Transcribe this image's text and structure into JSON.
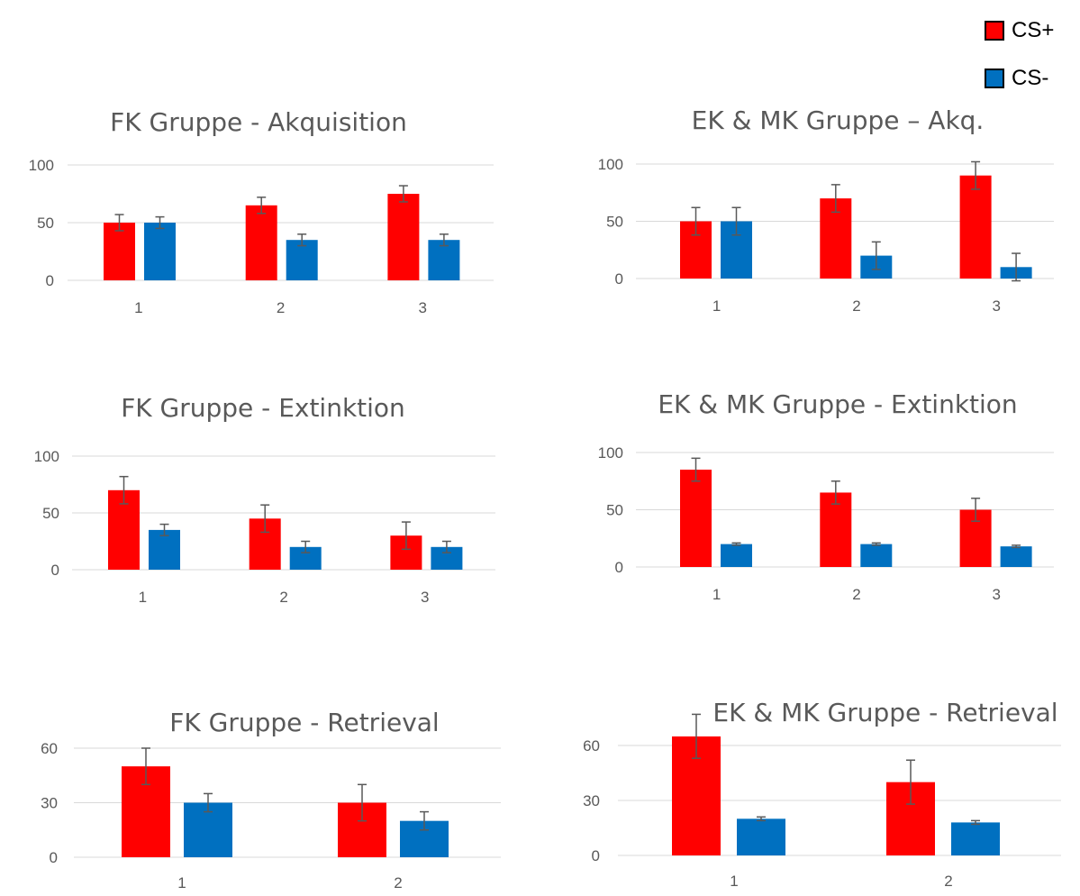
{
  "legend": [
    {
      "label": "CS+",
      "color": "#ff0000"
    },
    {
      "label": "CS-",
      "color": "#0070c0"
    }
  ],
  "colors": {
    "cs_plus": "#ff0000",
    "cs_minus": "#0070c0",
    "gridline": "#d9d9d9",
    "error_bar": "#595959",
    "text": "#595959"
  },
  "chart_data": [
    {
      "type": "bar",
      "title": "FK Gruppe - Akquisition",
      "categories": [
        "1",
        "2",
        "3"
      ],
      "ylim": [
        0,
        100
      ],
      "yticks": [
        "0",
        "50",
        "100"
      ],
      "grid": true,
      "series": [
        {
          "name": "CS+",
          "values": [
            50,
            65,
            75
          ],
          "errors": [
            7,
            7,
            7
          ]
        },
        {
          "name": "CS-",
          "values": [
            50,
            35,
            35
          ],
          "errors": [
            5,
            5,
            5
          ]
        }
      ]
    },
    {
      "type": "bar",
      "title": "EK & MK Gruppe – Akq.",
      "categories": [
        "1",
        "2",
        "3"
      ],
      "ylim": [
        0,
        100
      ],
      "yticks": [
        "0",
        "50",
        "100"
      ],
      "grid": true,
      "series": [
        {
          "name": "CS+",
          "values": [
            50,
            70,
            90
          ],
          "errors": [
            12,
            12,
            12
          ]
        },
        {
          "name": "CS-",
          "values": [
            50,
            20,
            10
          ],
          "errors": [
            12,
            12,
            12
          ]
        }
      ]
    },
    {
      "type": "bar",
      "title": "FK Gruppe - Extinktion",
      "categories": [
        "1",
        "2",
        "3"
      ],
      "ylim": [
        0,
        100
      ],
      "yticks": [
        "0",
        "50",
        "100"
      ],
      "grid": true,
      "series": [
        {
          "name": "CS+",
          "values": [
            70,
            45,
            30
          ],
          "errors": [
            12,
            12,
            12
          ]
        },
        {
          "name": "CS-",
          "values": [
            35,
            20,
            20
          ],
          "errors": [
            5,
            5,
            5
          ]
        }
      ]
    },
    {
      "type": "bar",
      "title": "EK & MK Gruppe - Extinktion",
      "categories": [
        "1",
        "2",
        "3"
      ],
      "ylim": [
        0,
        100
      ],
      "yticks": [
        "0",
        "50",
        "100"
      ],
      "grid": true,
      "series": [
        {
          "name": "CS+",
          "values": [
            85,
            65,
            50
          ],
          "errors": [
            10,
            10,
            10
          ]
        },
        {
          "name": "CS-",
          "values": [
            20,
            20,
            18
          ],
          "errors": [
            1,
            1,
            1
          ]
        }
      ]
    },
    {
      "type": "bar",
      "title": "FK Gruppe - Retrieval",
      "categories": [
        "1",
        "2"
      ],
      "ylim": [
        0,
        60
      ],
      "yticks": [
        "0",
        "30",
        "60"
      ],
      "grid": true,
      "series": [
        {
          "name": "CS+",
          "values": [
            50,
            30
          ],
          "errors": [
            10,
            10
          ]
        },
        {
          "name": "CS-",
          "values": [
            30,
            20
          ],
          "errors": [
            5,
            5
          ]
        }
      ]
    },
    {
      "type": "bar",
      "title": "EK  & MK Gruppe - Retrieval",
      "categories": [
        "1",
        "2"
      ],
      "ylim": [
        0,
        60
      ],
      "yticks": [
        "0",
        "30",
        "60"
      ],
      "grid": true,
      "series": [
        {
          "name": "CS+",
          "values": [
            65,
            40
          ],
          "errors": [
            12,
            12
          ]
        },
        {
          "name": "CS-",
          "values": [
            20,
            18
          ],
          "errors": [
            1,
            1
          ]
        }
      ]
    }
  ]
}
